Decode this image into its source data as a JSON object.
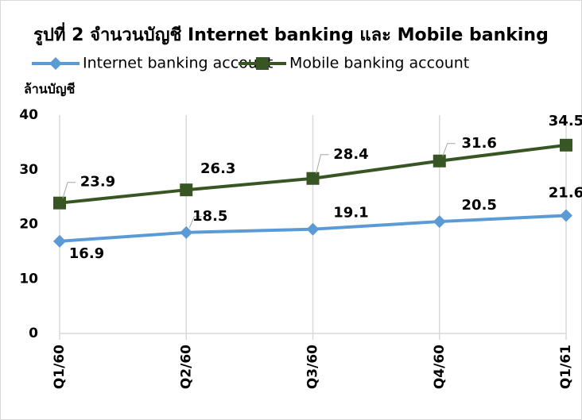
{
  "chart_data": {
    "type": "line",
    "title": "รูปที่ 2 จำนวนบัญชี Internet banking และ Mobile banking",
    "y_label": "ล้านบัญชี",
    "categories": [
      "Q1/60",
      "Q2/60",
      "Q3/60",
      "Q4/60",
      "Q1/61"
    ],
    "series": [
      {
        "name": "Internet banking account",
        "color": "#5b9bd5",
        "marker": "diamond",
        "values": [
          16.9,
          18.5,
          19.1,
          20.5,
          21.6
        ]
      },
      {
        "name": "Mobile banking account",
        "color": "#375623",
        "marker": "square",
        "values": [
          23.9,
          26.3,
          28.4,
          31.6,
          34.5
        ]
      }
    ],
    "ylim": [
      0,
      40
    ],
    "yticks": [
      0,
      10,
      20,
      30,
      40
    ],
    "grid": true,
    "legend": "top"
  }
}
